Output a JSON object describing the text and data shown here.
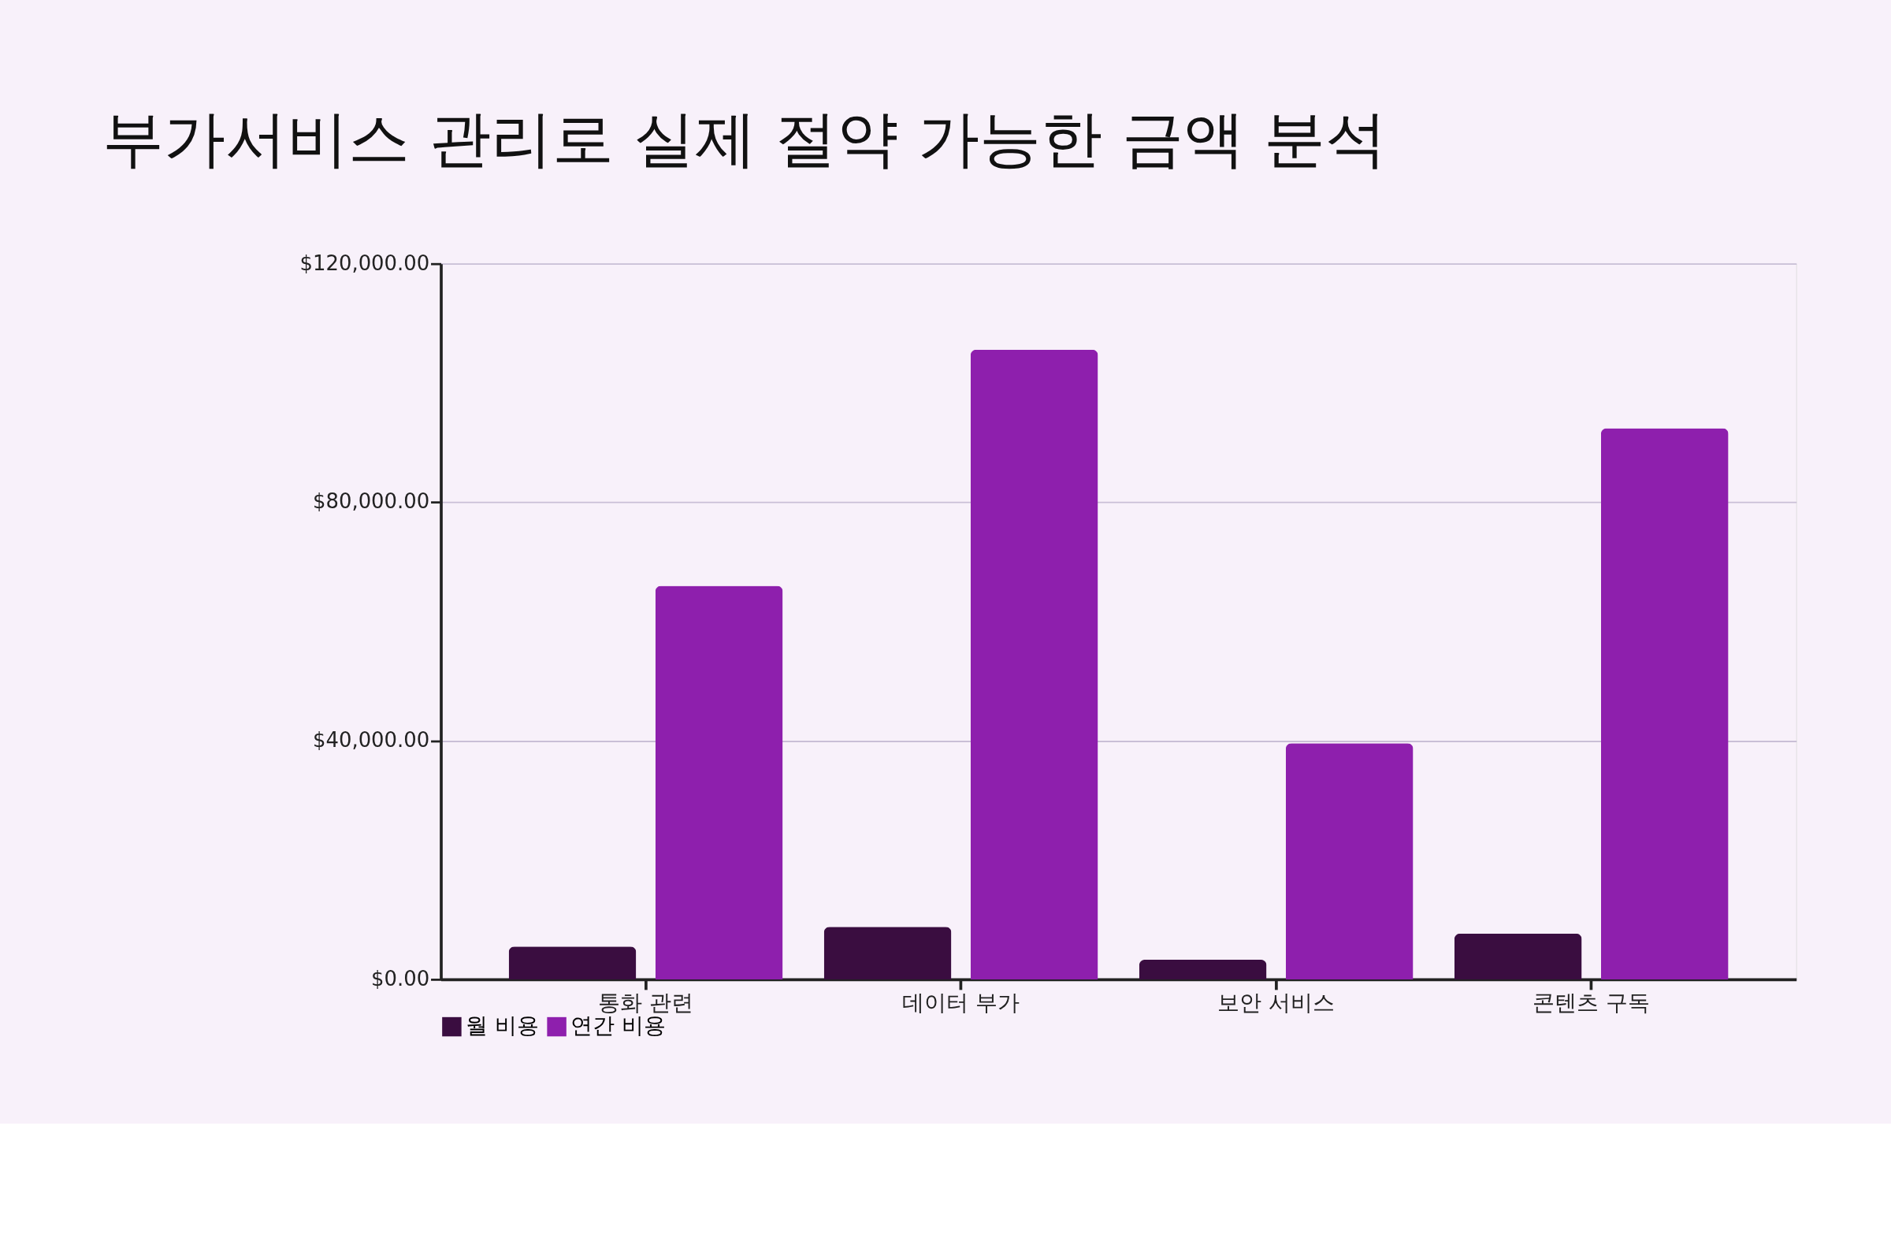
{
  "chart_data": {
    "type": "bar",
    "title": "부가서비스 관리로 실제 절약 가능한 금액 분석",
    "categories": [
      "통화 관련",
      "데이터 부가",
      "보안 서비스",
      "콘텐츠 구독"
    ],
    "series": [
      {
        "name": "월 비용",
        "color": "#3a0d40",
        "values": [
          5500,
          8800,
          3300,
          7700
        ]
      },
      {
        "name": "연간 비용",
        "color": "#8e1fad",
        "values": [
          66000,
          105600,
          39600,
          92400
        ]
      }
    ],
    "ylim": [
      0,
      120000
    ],
    "yticks": [
      {
        "value": 0,
        "label": "$0.00"
      },
      {
        "value": 40000,
        "label": "$40,000.00"
      },
      {
        "value": 80000,
        "label": "$80,000.00"
      },
      {
        "value": 120000,
        "label": "$120,000.00"
      }
    ],
    "grid": "y",
    "legend": "bottom"
  }
}
